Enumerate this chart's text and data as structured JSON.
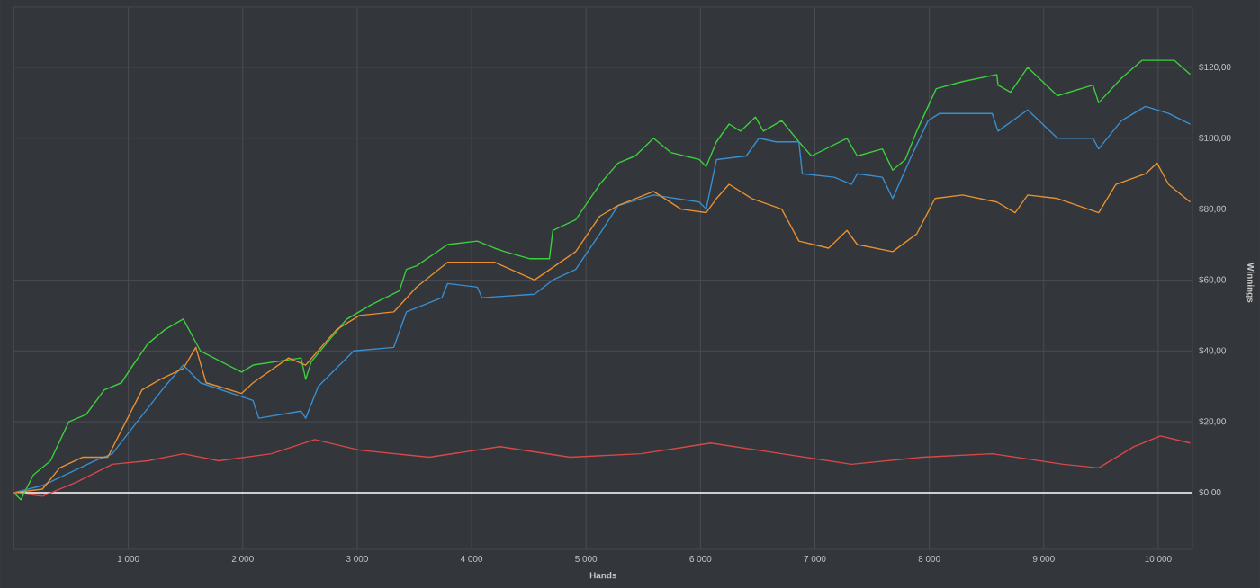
{
  "chart_data": {
    "type": "line",
    "xlabel": "Hands",
    "ylabel": "Winnings",
    "xlim": [
      0,
      10300
    ],
    "ylim": [
      -16,
      137
    ],
    "xticks": [
      {
        "value": 1000,
        "label": "1 000"
      },
      {
        "value": 2000,
        "label": "2 000"
      },
      {
        "value": 3000,
        "label": "3 000"
      },
      {
        "value": 4000,
        "label": "4 000"
      },
      {
        "value": 5000,
        "label": "5 000"
      },
      {
        "value": 6000,
        "label": "6 000"
      },
      {
        "value": 7000,
        "label": "7 000"
      },
      {
        "value": 8000,
        "label": "8 000"
      },
      {
        "value": 9000,
        "label": "9 000"
      },
      {
        "value": 10000,
        "label": "10 000"
      }
    ],
    "yticks": [
      {
        "value": 0,
        "label": "$0,00"
      },
      {
        "value": 20,
        "label": "$20,00"
      },
      {
        "value": 40,
        "label": "$40,00"
      },
      {
        "value": 60,
        "label": "$60,00"
      },
      {
        "value": 80,
        "label": "$80,00"
      },
      {
        "value": 100,
        "label": "$100,00"
      },
      {
        "value": 120,
        "label": "$120,00"
      }
    ],
    "grid": true,
    "marker": "none",
    "line_style": "solid",
    "ref_lines": [
      {
        "axis": "y",
        "value": 0,
        "color": "#ffffff"
      }
    ],
    "series": [
      {
        "color": "#3ccf3c",
        "x": [
          0,
          60,
          170,
          320,
          480,
          630,
          790,
          940,
          1020,
          1170,
          1320,
          1480,
          1630,
          1990,
          2090,
          2510,
          2550,
          2600,
          2910,
          3120,
          3370,
          3430,
          3520,
          3790,
          4050,
          4200,
          4290,
          4510,
          4680,
          4710,
          4910,
          5120,
          5280,
          5430,
          5590,
          5740,
          5990,
          6050,
          6140,
          6250,
          6350,
          6480,
          6550,
          6710,
          6860,
          6970,
          7280,
          7370,
          7590,
          7680,
          7790,
          7890,
          8060,
          8290,
          8590,
          8600,
          8710,
          8860,
          9120,
          9430,
          9480,
          9680,
          9860,
          10140,
          10280
        ],
        "values": [
          0,
          -2,
          5,
          9,
          20,
          22,
          29,
          31,
          35,
          42,
          46,
          49,
          40,
          34,
          36,
          38,
          32,
          37,
          49,
          53,
          57,
          63,
          64,
          70,
          71,
          69,
          68,
          66,
          66,
          74,
          77,
          87,
          93,
          95,
          100,
          96,
          94,
          92,
          99,
          104,
          102,
          106,
          102,
          105,
          99,
          95,
          100,
          95,
          97,
          91,
          94,
          102,
          114,
          116,
          118,
          115,
          113,
          120,
          112,
          115,
          110,
          117,
          122,
          122,
          118
        ]
      },
      {
        "color": "#3a8fd0",
        "x": [
          0,
          250,
          710,
          860,
          1320,
          1480,
          1630,
          2090,
          2140,
          2510,
          2550,
          2660,
          2970,
          3320,
          3430,
          3740,
          3790,
          4050,
          4090,
          4550,
          4710,
          4910,
          5120,
          5280,
          5590,
          5990,
          6050,
          6140,
          6400,
          6510,
          6660,
          6860,
          6890,
          7170,
          7320,
          7370,
          7590,
          7680,
          7830,
          7990,
          8090,
          8550,
          8600,
          8860,
          9120,
          9430,
          9480,
          9680,
          9890,
          10090,
          10280
        ],
        "values": [
          0,
          2,
          9,
          11,
          30,
          36,
          31,
          26,
          21,
          23,
          21,
          30,
          40,
          41,
          51,
          55,
          59,
          58,
          55,
          56,
          60,
          63,
          73,
          81,
          84,
          82,
          80,
          94,
          95,
          100,
          99,
          99,
          90,
          89,
          87,
          90,
          89,
          83,
          94,
          105,
          107,
          107,
          102,
          108,
          100,
          100,
          97,
          105,
          109,
          107,
          104
        ]
      },
      {
        "color": "#e89030",
        "x": [
          0,
          250,
          400,
          600,
          820,
          1120,
          1280,
          1480,
          1590,
          1680,
          1990,
          2090,
          2400,
          2550,
          2820,
          3020,
          3320,
          3520,
          3790,
          4200,
          4550,
          4910,
          5120,
          5280,
          5590,
          5830,
          6050,
          6140,
          6250,
          6450,
          6710,
          6860,
          7120,
          7280,
          7370,
          7680,
          7890,
          8050,
          8290,
          8590,
          8750,
          8860,
          9120,
          9480,
          9630,
          9890,
          9990,
          10090,
          10280
        ],
        "values": [
          0,
          1,
          7,
          10,
          10,
          29,
          32,
          35,
          41,
          31,
          28,
          31,
          38,
          36,
          46,
          50,
          51,
          58,
          65,
          65,
          60,
          68,
          78,
          81,
          85,
          80,
          79,
          83,
          87,
          83,
          80,
          71,
          69,
          74,
          70,
          68,
          73,
          83,
          84,
          82,
          79,
          84,
          83,
          79,
          87,
          90,
          93,
          87,
          82
        ]
      },
      {
        "color": "#d84848",
        "x": [
          0,
          250,
          550,
          860,
          1170,
          1480,
          1790,
          2250,
          2630,
          3020,
          3630,
          4250,
          4860,
          5480,
          6090,
          6710,
          7320,
          7940,
          8550,
          9170,
          9480,
          9790,
          10020,
          10280
        ],
        "values": [
          0,
          -1,
          3,
          8,
          9,
          11,
          9,
          11,
          15,
          12,
          10,
          13,
          10,
          11,
          14,
          11,
          8,
          10,
          11,
          8,
          7,
          13,
          16,
          14
        ]
      }
    ]
  }
}
